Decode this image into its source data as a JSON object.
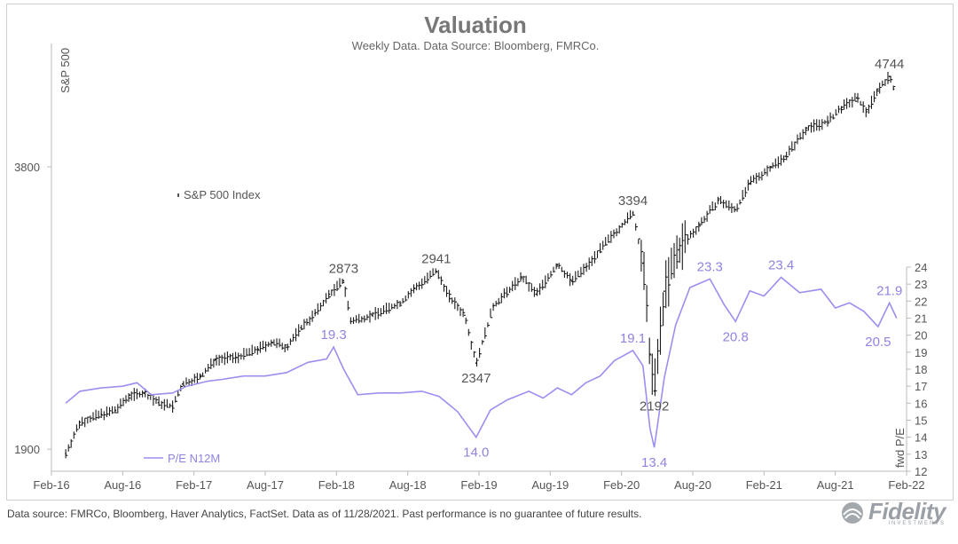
{
  "title": "Valuation",
  "subtitle": "Weekly Data. Data Source: Bloomberg, FMRCo.",
  "footer_note": "Data source: FMRCo, Bloomberg, Haver Analytics, FactSet. Data as of 11/28/2021. Past performance is no guarantee of future results.",
  "logo": {
    "name": "Fidelity",
    "sub": "INVESTMENTS"
  },
  "colors": {
    "spx": "#1a1a1a",
    "pe": "#9b8ff0",
    "axis": "#bbbbbb"
  },
  "chart_data": {
    "type": "line",
    "title": "Valuation",
    "x_ticks": [
      "Feb-16",
      "Aug-16",
      "Feb-17",
      "Aug-17",
      "Feb-18",
      "Aug-18",
      "Feb-19",
      "Aug-19",
      "Feb-20",
      "Aug-20",
      "Feb-21",
      "Aug-21",
      "Feb-22"
    ],
    "x_range": [
      2016.0,
      2022.0
    ],
    "left_axis": {
      "label": "S&P 500",
      "scale": "log",
      "ticks": [
        1900,
        3800
      ],
      "range": [
        1800,
        5100
      ]
    },
    "right_axis": {
      "label": "fwd P/E",
      "ticks": [
        12,
        13,
        14,
        15,
        16,
        17,
        18,
        19,
        20,
        21,
        22,
        23,
        24
      ],
      "range": [
        12,
        24
      ]
    },
    "series": [
      {
        "name": "S&P 500 Index",
        "axis": "left",
        "style": "ohlc",
        "points": [
          [
            2016.1,
            1880
          ],
          [
            2016.2,
            2030
          ],
          [
            2016.35,
            2070
          ],
          [
            2016.45,
            2090
          ],
          [
            2016.55,
            2170
          ],
          [
            2016.65,
            2180
          ],
          [
            2016.75,
            2130
          ],
          [
            2016.85,
            2110
          ],
          [
            2016.92,
            2230
          ],
          [
            2017.05,
            2270
          ],
          [
            2017.15,
            2370
          ],
          [
            2017.3,
            2380
          ],
          [
            2017.45,
            2430
          ],
          [
            2017.55,
            2470
          ],
          [
            2017.65,
            2440
          ],
          [
            2017.75,
            2560
          ],
          [
            2017.85,
            2650
          ],
          [
            2017.95,
            2780
          ],
          [
            2018.05,
            2873
          ],
          [
            2018.1,
            2600
          ],
          [
            2018.25,
            2640
          ],
          [
            2018.45,
            2720
          ],
          [
            2018.55,
            2820
          ],
          [
            2018.7,
            2941
          ],
          [
            2018.8,
            2750
          ],
          [
            2018.9,
            2640
          ],
          [
            2018.98,
            2347
          ],
          [
            2019.1,
            2700
          ],
          [
            2019.3,
            2900
          ],
          [
            2019.4,
            2780
          ],
          [
            2019.55,
            2990
          ],
          [
            2019.65,
            2870
          ],
          [
            2019.75,
            2970
          ],
          [
            2019.85,
            3100
          ],
          [
            2019.95,
            3230
          ],
          [
            2020.08,
            3394
          ],
          [
            2020.15,
            3000
          ],
          [
            2020.2,
            2400
          ],
          [
            2020.23,
            2192
          ],
          [
            2020.3,
            2800
          ],
          [
            2020.4,
            3100
          ],
          [
            2020.55,
            3300
          ],
          [
            2020.68,
            3500
          ],
          [
            2020.8,
            3420
          ],
          [
            2020.9,
            3650
          ],
          [
            2021.05,
            3800
          ],
          [
            2021.15,
            3900
          ],
          [
            2021.3,
            4180
          ],
          [
            2021.45,
            4250
          ],
          [
            2021.55,
            4400
          ],
          [
            2021.65,
            4500
          ],
          [
            2021.72,
            4350
          ],
          [
            2021.8,
            4600
          ],
          [
            2021.88,
            4744
          ],
          [
            2021.91,
            4600
          ]
        ]
      },
      {
        "name": "P/E N12M",
        "axis": "right",
        "style": "line",
        "points": [
          [
            2016.1,
            16.0
          ],
          [
            2016.2,
            16.7
          ],
          [
            2016.35,
            16.9
          ],
          [
            2016.5,
            17.0
          ],
          [
            2016.6,
            17.2
          ],
          [
            2016.7,
            16.5
          ],
          [
            2016.85,
            16.6
          ],
          [
            2016.95,
            17.0
          ],
          [
            2017.1,
            17.3
          ],
          [
            2017.2,
            17.4
          ],
          [
            2017.35,
            17.6
          ],
          [
            2017.5,
            17.6
          ],
          [
            2017.65,
            17.8
          ],
          [
            2017.8,
            18.4
          ],
          [
            2017.93,
            18.6
          ],
          [
            2017.98,
            19.3
          ],
          [
            2018.05,
            18.0
          ],
          [
            2018.15,
            16.5
          ],
          [
            2018.3,
            16.6
          ],
          [
            2018.45,
            16.6
          ],
          [
            2018.6,
            16.7
          ],
          [
            2018.72,
            16.4
          ],
          [
            2018.85,
            15.5
          ],
          [
            2018.98,
            14.0
          ],
          [
            2019.08,
            15.6
          ],
          [
            2019.2,
            16.2
          ],
          [
            2019.35,
            16.7
          ],
          [
            2019.45,
            16.3
          ],
          [
            2019.55,
            16.9
          ],
          [
            2019.65,
            16.5
          ],
          [
            2019.75,
            17.2
          ],
          [
            2019.85,
            17.6
          ],
          [
            2019.95,
            18.5
          ],
          [
            2020.08,
            19.1
          ],
          [
            2020.15,
            18.2
          ],
          [
            2020.2,
            14.5
          ],
          [
            2020.23,
            13.4
          ],
          [
            2020.3,
            17.5
          ],
          [
            2020.38,
            20.6
          ],
          [
            2020.48,
            22.8
          ],
          [
            2020.62,
            23.3
          ],
          [
            2020.72,
            21.8
          ],
          [
            2020.8,
            20.8
          ],
          [
            2020.9,
            22.6
          ],
          [
            2021.0,
            22.3
          ],
          [
            2021.12,
            23.4
          ],
          [
            2021.25,
            22.5
          ],
          [
            2021.4,
            22.7
          ],
          [
            2021.5,
            21.6
          ],
          [
            2021.6,
            21.9
          ],
          [
            2021.7,
            21.4
          ],
          [
            2021.8,
            20.5
          ],
          [
            2021.88,
            21.9
          ],
          [
            2021.93,
            21.0
          ]
        ]
      }
    ],
    "annotations": [
      {
        "series": "S&P 500 Index",
        "x": 2018.05,
        "y": 2873,
        "text": "2873",
        "pos": "above"
      },
      {
        "series": "S&P 500 Index",
        "x": 2018.7,
        "y": 2941,
        "text": "2941",
        "pos": "above"
      },
      {
        "series": "S&P 500 Index",
        "x": 2018.98,
        "y": 2347,
        "text": "2347",
        "pos": "below"
      },
      {
        "series": "S&P 500 Index",
        "x": 2020.08,
        "y": 3394,
        "text": "3394",
        "pos": "above"
      },
      {
        "series": "S&P 500 Index",
        "x": 2020.23,
        "y": 2192,
        "text": "2192",
        "pos": "below"
      },
      {
        "series": "S&P 500 Index",
        "x": 2021.88,
        "y": 4744,
        "text": "4744",
        "pos": "above"
      },
      {
        "series": "P/E N12M",
        "x": 2017.98,
        "y": 19.3,
        "text": "19.3",
        "pos": "above"
      },
      {
        "series": "P/E N12M",
        "x": 2018.98,
        "y": 14.0,
        "text": "14.0",
        "pos": "below"
      },
      {
        "series": "P/E N12M",
        "x": 2020.08,
        "y": 19.1,
        "text": "19.1",
        "pos": "above"
      },
      {
        "series": "P/E N12M",
        "x": 2020.23,
        "y": 13.4,
        "text": "13.4",
        "pos": "below"
      },
      {
        "series": "P/E N12M",
        "x": 2020.62,
        "y": 23.3,
        "text": "23.3",
        "pos": "above"
      },
      {
        "series": "P/E N12M",
        "x": 2020.8,
        "y": 20.8,
        "text": "20.8",
        "pos": "below"
      },
      {
        "series": "P/E N12M",
        "x": 2021.12,
        "y": 23.4,
        "text": "23.4",
        "pos": "above"
      },
      {
        "series": "P/E N12M",
        "x": 2021.8,
        "y": 20.5,
        "text": "20.5",
        "pos": "below"
      },
      {
        "series": "P/E N12M",
        "x": 2021.88,
        "y": 21.9,
        "text": "21.9",
        "pos": "above"
      }
    ]
  }
}
